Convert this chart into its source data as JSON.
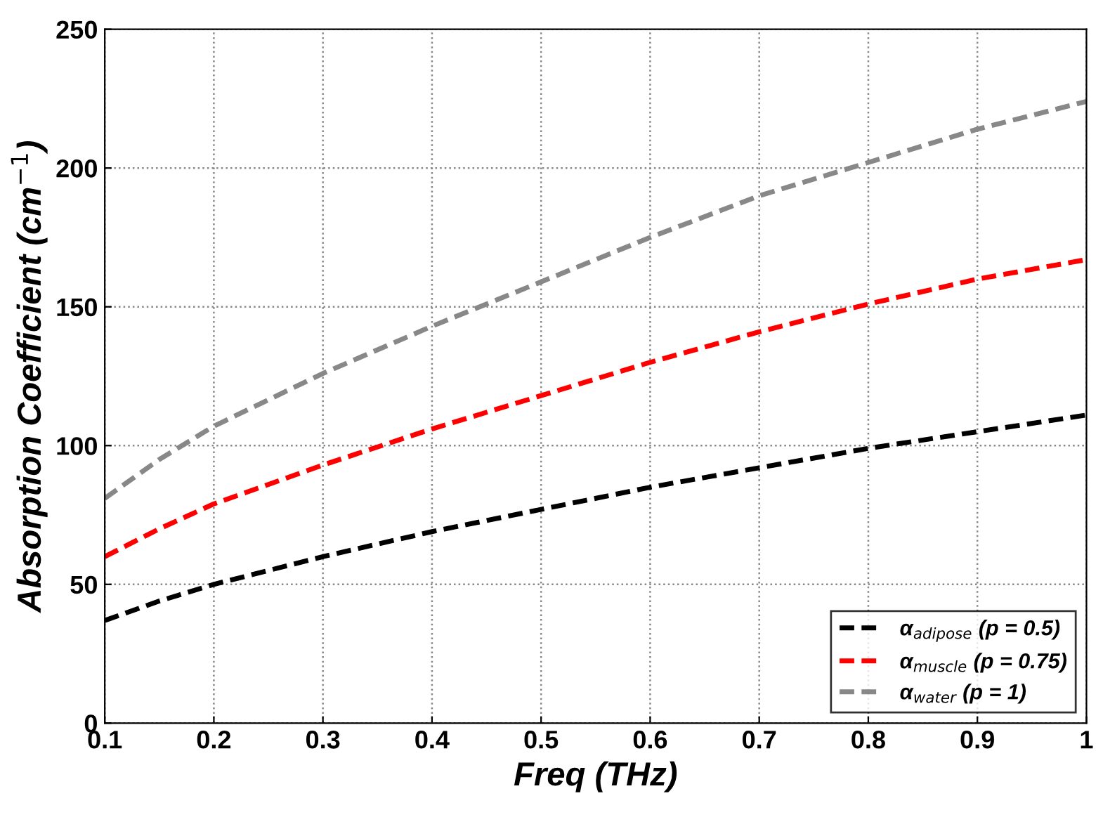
{
  "chart_data": {
    "type": "line",
    "xlabel": "Freq (THz)",
    "ylabel": "Absorption Coefficient (cm$^{−1}$)",
    "xlim": [
      0.1,
      1
    ],
    "xticks": [
      0.1,
      0.2,
      0.3,
      0.4,
      0.5,
      0.6,
      0.7,
      0.8,
      0.9,
      1
    ],
    "ylim": [
      0,
      250
    ],
    "yticks": [
      0,
      50,
      100,
      150,
      200,
      250
    ],
    "grid": true,
    "legend": "bottom right",
    "line_style": "dashed",
    "marker": "none",
    "series": [
      {
        "name": "α$_{adipose}$ (p = 0.5)",
        "color": "#000000",
        "x": [
          0.1,
          0.15,
          0.2,
          0.3,
          0.4,
          0.5,
          0.6,
          0.7,
          0.8,
          0.9,
          1
        ],
        "values": [
          37,
          44,
          50,
          60,
          69,
          77,
          85,
          92,
          99,
          105,
          111
        ]
      },
      {
        "name": "α$_{muscle}$ (p = 0.75)",
        "color": "#ff0000",
        "x": [
          0.1,
          0.15,
          0.2,
          0.3,
          0.4,
          0.5,
          0.6,
          0.7,
          0.8,
          0.9,
          1
        ],
        "values": [
          60,
          70,
          79,
          93,
          106,
          118,
          130,
          141,
          151,
          160,
          167
        ]
      },
      {
        "name": "α$_{water}$ (p = 1)",
        "color": "#888888",
        "x": [
          0.1,
          0.15,
          0.2,
          0.3,
          0.4,
          0.5,
          0.6,
          0.7,
          0.8,
          0.9,
          1
        ],
        "values": [
          81,
          95,
          107,
          126,
          143,
          159,
          175,
          190,
          202,
          214,
          224
        ]
      }
    ]
  }
}
